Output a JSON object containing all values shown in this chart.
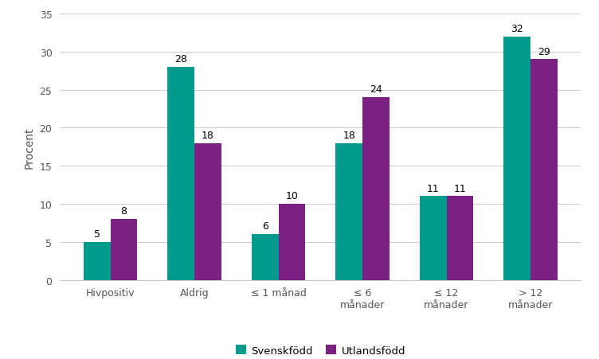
{
  "categories": [
    "Hivpositiv",
    "Aldrig",
    "≤ 1 månad",
    "≤ 6\nmånader",
    "≤ 12\nmånader",
    "> 12\nmånader"
  ],
  "svenskfodd": [
    5,
    28,
    6,
    18,
    11,
    32
  ],
  "utlandsfodd": [
    8,
    18,
    10,
    24,
    11,
    29
  ],
  "color_svensk": "#009B8D",
  "color_utlands": "#7B2182",
  "ylabel": "Procent",
  "ylim": [
    0,
    35
  ],
  "yticks": [
    0,
    5,
    10,
    15,
    20,
    25,
    30,
    35
  ],
  "legend_svensk": "Svenskfödd",
  "legend_utlands": "Utlandsfödd",
  "bar_width": 0.32,
  "label_fontsize": 9,
  "tick_fontsize": 9,
  "legend_fontsize": 9.5,
  "ylabel_fontsize": 10,
  "grid_color": "#cccccc",
  "background_color": "#ffffff"
}
